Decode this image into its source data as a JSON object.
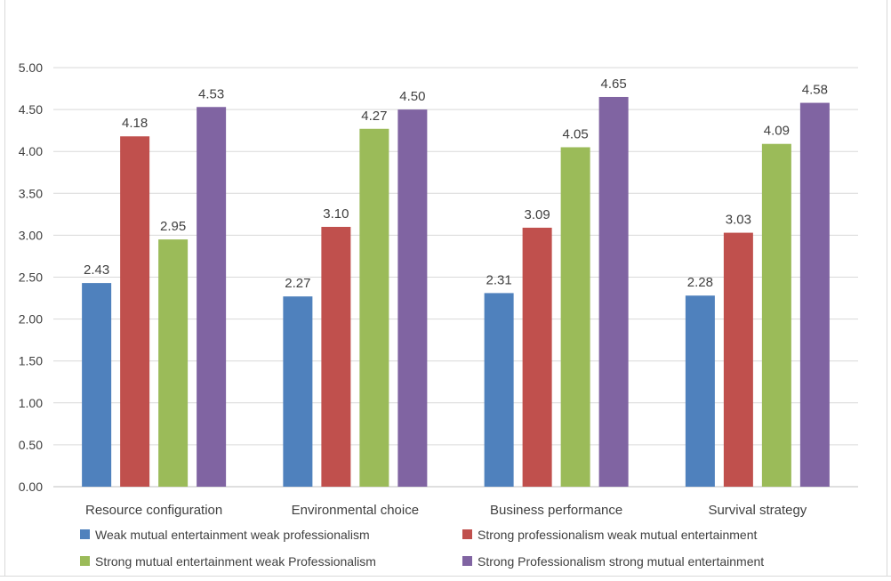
{
  "chart_data": {
    "type": "bar",
    "categories": [
      "Resource configuration",
      "Environmental choice",
      "Business performance",
      "Survival strategy"
    ],
    "series": [
      {
        "name": "Weak mutual entertainment weak professionalism",
        "color": "#4f81bd",
        "values": [
          2.43,
          2.27,
          2.31,
          2.28
        ],
        "labels": [
          "2.43",
          "2.27",
          "2.31",
          "2.28"
        ]
      },
      {
        "name": "Strong professionalism weak mutual entertainment",
        "color": "#c0504d",
        "values": [
          4.18,
          3.1,
          3.09,
          3.03
        ],
        "labels": [
          "4.18",
          "3.10",
          "3.09",
          "3.03"
        ]
      },
      {
        "name": "Strong mutual entertainment weak Professionalism",
        "color": "#9bbb59",
        "values": [
          2.95,
          4.27,
          4.05,
          4.09
        ],
        "labels": [
          "2.95",
          "4.27",
          "4.05",
          "4.09"
        ]
      },
      {
        "name": "Strong Professionalism strong mutual entertainment",
        "color": "#8064a2",
        "values": [
          4.53,
          4.5,
          4.65,
          4.58
        ],
        "labels": [
          "4.53",
          "4.50",
          "4.65",
          "4.58"
        ]
      }
    ],
    "yticks": [
      "0.00",
      "0.50",
      "1.00",
      "1.50",
      "2.00",
      "2.50",
      "3.00",
      "3.50",
      "4.00",
      "4.50",
      "5.00"
    ],
    "ylim": [
      0,
      5
    ],
    "grid": true,
    "legend_position": "bottom",
    "title": "",
    "xlabel": "",
    "ylabel": ""
  }
}
